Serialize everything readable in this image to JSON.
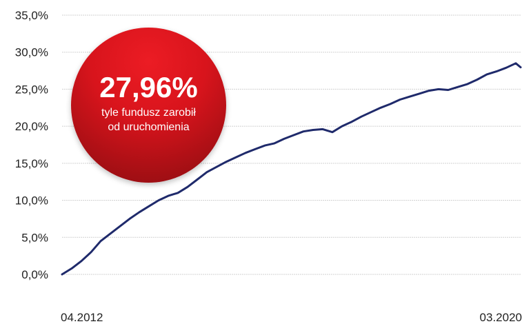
{
  "callout": {
    "value": "27,96%",
    "caption": "tyle fundusz zarobił od uruchomienia"
  },
  "colors": {
    "line": "#1f2a6b",
    "badge": "#d8141c"
  },
  "chart_data": {
    "type": "line",
    "title": "",
    "xlabel": "",
    "ylabel": "",
    "x_tick_labels": [
      "04.2012",
      "03.2020"
    ],
    "y_tick_labels": [
      "0,0%",
      "5,0%",
      "10,0%",
      "15,0%",
      "20,0%",
      "25,0%",
      "30,0%",
      "35,0%"
    ],
    "ylim": [
      0,
      35
    ],
    "xlim": [
      "04.2012",
      "03.2020"
    ],
    "grid": "horizontal",
    "legend": "none",
    "series": [
      {
        "x": [
          "04.2012",
          "06.2012",
          "08.2012",
          "10.2012",
          "12.2012",
          "02.2013",
          "04.2013",
          "06.2013",
          "08.2013",
          "10.2013",
          "12.2013",
          "02.2014",
          "04.2014",
          "06.2014",
          "08.2014",
          "10.2014",
          "12.2014",
          "02.2015",
          "04.2015",
          "06.2015",
          "08.2015",
          "10.2015",
          "12.2015",
          "02.2016",
          "04.2016",
          "06.2016",
          "08.2016",
          "10.2016",
          "12.2016",
          "02.2017",
          "04.2017",
          "06.2017",
          "08.2017",
          "10.2017",
          "12.2017",
          "02.2018",
          "04.2018",
          "06.2018",
          "08.2018",
          "10.2018",
          "12.2018",
          "02.2019",
          "04.2019",
          "06.2019",
          "08.2019",
          "10.2019",
          "12.2019",
          "02.2020",
          "03.2020"
        ],
        "y": [
          0.0,
          0.8,
          1.8,
          3.0,
          4.5,
          5.5,
          6.5,
          7.5,
          8.4,
          9.2,
          10.0,
          10.6,
          11.0,
          11.8,
          12.8,
          13.8,
          14.5,
          15.2,
          15.8,
          16.4,
          16.9,
          17.4,
          17.7,
          18.3,
          18.8,
          19.3,
          19.5,
          19.6,
          19.2,
          20.0,
          20.6,
          21.3,
          21.9,
          22.5,
          23.0,
          23.6,
          24.0,
          24.4,
          24.8,
          25.0,
          24.9,
          25.3,
          25.7,
          26.3,
          27.0,
          27.4,
          27.9,
          28.5,
          27.96
        ]
      }
    ]
  }
}
